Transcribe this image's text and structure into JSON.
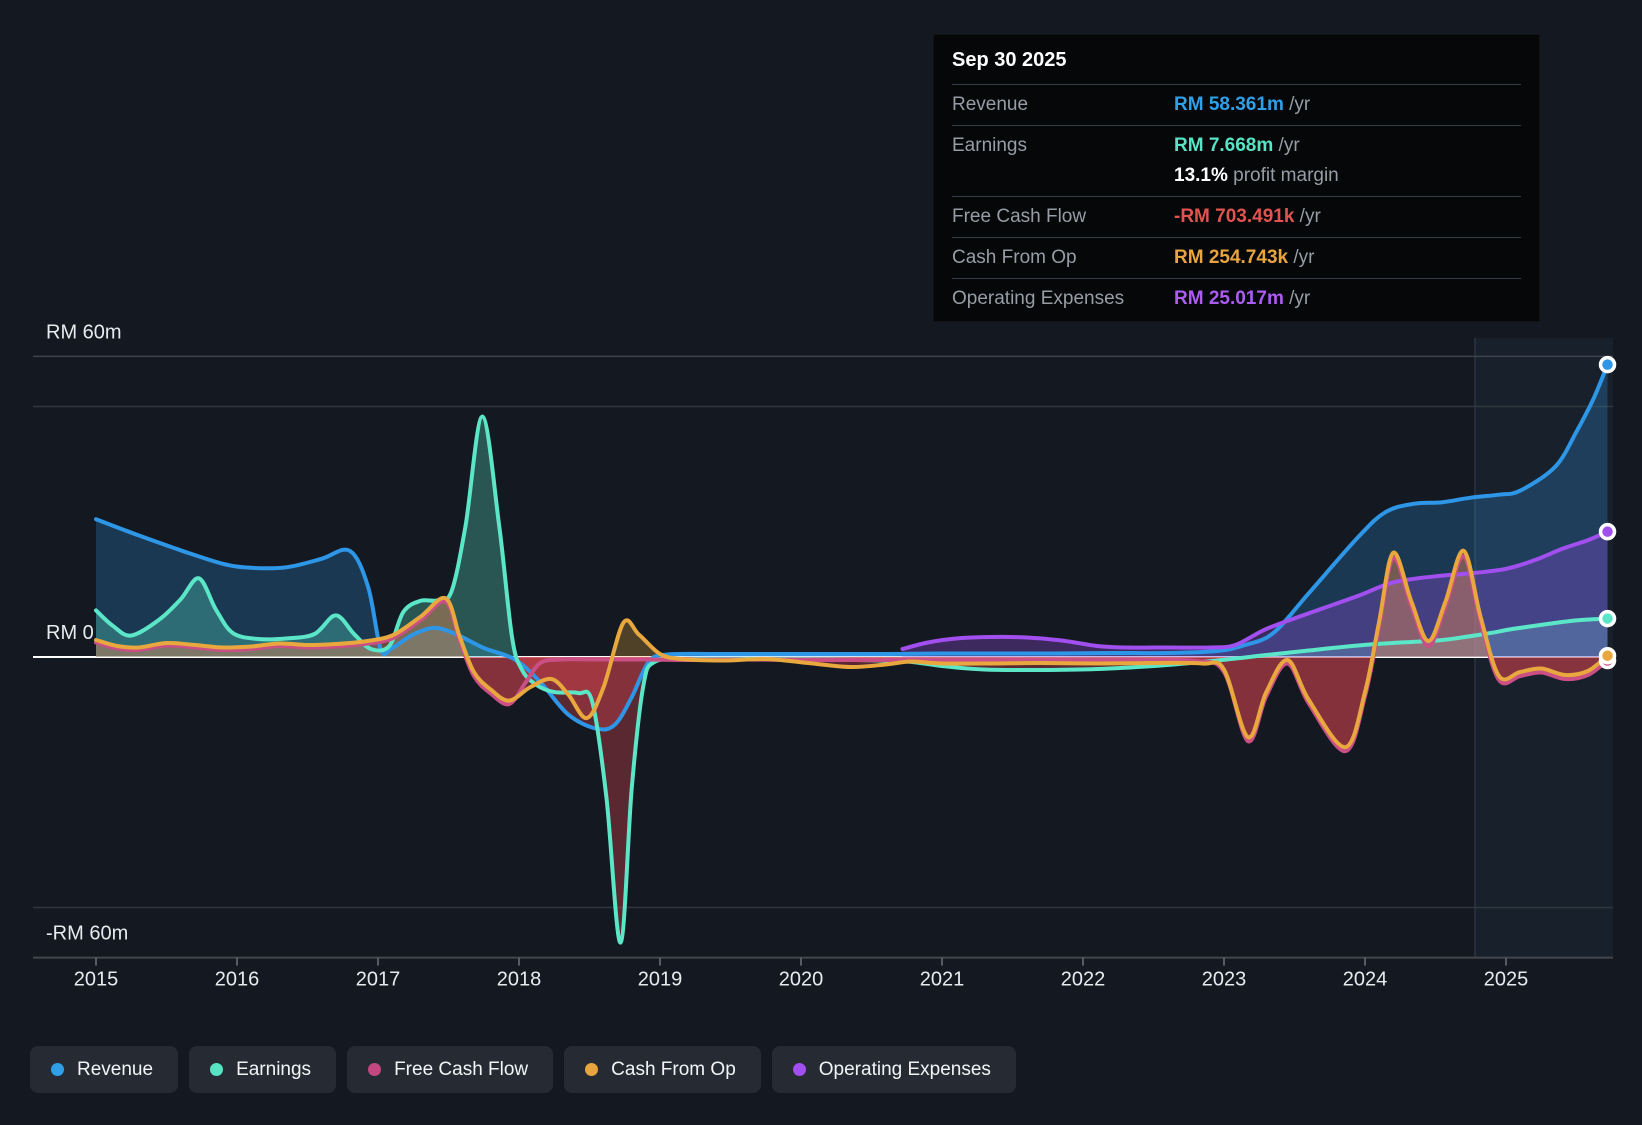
{
  "tooltip": {
    "title": "Sep 30 2025",
    "rows": [
      {
        "id": "revenue",
        "label": "Revenue",
        "value": "RM 58.361m",
        "suffix": " /yr",
        "color": "#2f9fe8"
      },
      {
        "id": "earnings",
        "label": "Earnings",
        "value": "RM 7.668m",
        "suffix": " /yr",
        "color": "#57e3c4",
        "subvalue": "13.1%",
        "subtext": " profit margin"
      },
      {
        "id": "fcf",
        "label": "Free Cash Flow",
        "value": "-RM 703.491k",
        "suffix": " /yr",
        "color": "#e0534e"
      },
      {
        "id": "cashop",
        "label": "Cash From Op",
        "value": "RM 254.743k",
        "suffix": " /yr",
        "color": "#e8a53e"
      },
      {
        "id": "opex",
        "label": "Operating Expenses",
        "value": "RM 25.017m",
        "suffix": " /yr",
        "color": "#ab5cf5"
      }
    ]
  },
  "legend": {
    "items": [
      {
        "id": "revenue",
        "label": "Revenue",
        "color": "#2f9fe8"
      },
      {
        "id": "earnings",
        "label": "Earnings",
        "color": "#57e3c4"
      },
      {
        "id": "fcf",
        "label": "Free Cash Flow",
        "color": "#c2487f"
      },
      {
        "id": "cashop",
        "label": "Cash From Op",
        "color": "#e8a53e"
      },
      {
        "id": "opex",
        "label": "Operating Expenses",
        "color": "#a14fee"
      }
    ]
  },
  "chart_data": {
    "type": "area",
    "unit": "RM millions per year",
    "y_axis": {
      "labels": [
        {
          "text": "RM 60m",
          "value": 60
        },
        {
          "text": "RM 0",
          "value": 0
        },
        {
          "text": "-RM 60m",
          "value": -60
        }
      ],
      "minor_gridlines": [
        50,
        -50
      ],
      "range": [
        -60,
        60
      ]
    },
    "x_axis": {
      "ticks": [
        2015,
        2016,
        2017,
        2018,
        2019,
        2020,
        2021,
        2022,
        2023,
        2024,
        2025
      ]
    },
    "highlight_band": {
      "from_year": 2024.78,
      "to_year": 2025.8
    },
    "series": [
      {
        "id": "revenue",
        "name": "Revenue",
        "color": "#2e96e6",
        "fill_opacity": 0.25,
        "points": [
          [
            2015.0,
            27.5
          ],
          [
            2015.3,
            24.3
          ],
          [
            2015.6,
            21.3
          ],
          [
            2015.9,
            18.6
          ],
          [
            2016.1,
            17.8
          ],
          [
            2016.35,
            17.9
          ],
          [
            2016.6,
            19.6
          ],
          [
            2016.8,
            21.2
          ],
          [
            2016.93,
            14.0
          ],
          [
            2017.02,
            1.5
          ],
          [
            2017.1,
            1.8
          ],
          [
            2017.25,
            4.5
          ],
          [
            2017.4,
            5.8
          ],
          [
            2017.55,
            4.6
          ],
          [
            2017.75,
            1.8
          ],
          [
            2017.97,
            -0.5
          ],
          [
            2018.15,
            -5.0
          ],
          [
            2018.35,
            -11.5
          ],
          [
            2018.55,
            -14.3
          ],
          [
            2018.68,
            -13.5
          ],
          [
            2018.8,
            -8.0
          ],
          [
            2018.92,
            -1.0
          ],
          [
            2019.05,
            0.5
          ],
          [
            2019.4,
            0.6
          ],
          [
            2019.8,
            0.6
          ],
          [
            2020.2,
            0.6
          ],
          [
            2020.6,
            0.6
          ],
          [
            2021.0,
            0.7
          ],
          [
            2021.4,
            0.7
          ],
          [
            2021.8,
            0.7
          ],
          [
            2022.2,
            0.8
          ],
          [
            2022.6,
            0.8
          ],
          [
            2022.95,
            1.2
          ],
          [
            2023.15,
            2.4
          ],
          [
            2023.35,
            4.8
          ],
          [
            2023.6,
            12.7
          ],
          [
            2023.96,
            24.2
          ],
          [
            2024.15,
            29.0
          ],
          [
            2024.35,
            30.6
          ],
          [
            2024.55,
            30.9
          ],
          [
            2024.75,
            31.8
          ],
          [
            2024.95,
            32.4
          ],
          [
            2025.1,
            33.2
          ],
          [
            2025.35,
            38.0
          ],
          [
            2025.5,
            45.0
          ],
          [
            2025.62,
            51.5
          ],
          [
            2025.72,
            58.361
          ]
        ]
      },
      {
        "id": "earnings",
        "name": "Earnings",
        "color": "#5ce6c8",
        "fill_opacity": 0.3,
        "points": [
          [
            2015.0,
            9.3
          ],
          [
            2015.12,
            6.2
          ],
          [
            2015.25,
            4.3
          ],
          [
            2015.45,
            7.5
          ],
          [
            2015.6,
            11.5
          ],
          [
            2015.73,
            15.7
          ],
          [
            2015.85,
            9.5
          ],
          [
            2015.97,
            4.8
          ],
          [
            2016.15,
            3.6
          ],
          [
            2016.35,
            3.7
          ],
          [
            2016.55,
            4.6
          ],
          [
            2016.7,
            8.3
          ],
          [
            2016.83,
            4.6
          ],
          [
            2016.95,
            1.6
          ],
          [
            2017.08,
            2.2
          ],
          [
            2017.18,
            9.0
          ],
          [
            2017.3,
            11.2
          ],
          [
            2017.42,
            11.3
          ],
          [
            2017.52,
            13.0
          ],
          [
            2017.62,
            26.0
          ],
          [
            2017.74,
            48.0
          ],
          [
            2017.86,
            26.0
          ],
          [
            2017.95,
            4.0
          ],
          [
            2018.02,
            -2.5
          ],
          [
            2018.12,
            -5.5
          ],
          [
            2018.25,
            -7.0
          ],
          [
            2018.42,
            -7.2
          ],
          [
            2018.52,
            -9.0
          ],
          [
            2018.62,
            -28.0
          ],
          [
            2018.72,
            -57.0
          ],
          [
            2018.8,
            -26.0
          ],
          [
            2018.88,
            -6.0
          ],
          [
            2018.96,
            -1.0
          ],
          [
            2019.2,
            -0.5
          ],
          [
            2019.6,
            -0.4
          ],
          [
            2020.0,
            -0.5
          ],
          [
            2020.4,
            -0.6
          ],
          [
            2020.75,
            -0.9
          ],
          [
            2021.0,
            -1.8
          ],
          [
            2021.3,
            -2.5
          ],
          [
            2021.7,
            -2.6
          ],
          [
            2022.1,
            -2.4
          ],
          [
            2022.5,
            -1.8
          ],
          [
            2022.8,
            -1.1
          ],
          [
            2023.05,
            -0.4
          ],
          [
            2023.3,
            0.4
          ],
          [
            2023.6,
            1.3
          ],
          [
            2023.95,
            2.3
          ],
          [
            2024.25,
            2.9
          ],
          [
            2024.55,
            3.4
          ],
          [
            2024.85,
            4.6
          ],
          [
            2025.05,
            5.6
          ],
          [
            2025.3,
            6.6
          ],
          [
            2025.5,
            7.3
          ],
          [
            2025.72,
            7.668
          ]
        ]
      },
      {
        "id": "opex",
        "name": "Operating Expenses",
        "color": "#a14fee",
        "fill_opacity": 0.3,
        "points": [
          [
            2020.72,
            1.6
          ],
          [
            2020.9,
            2.9
          ],
          [
            2021.1,
            3.7
          ],
          [
            2021.35,
            4.0
          ],
          [
            2021.6,
            3.9
          ],
          [
            2021.85,
            3.3
          ],
          [
            2022.1,
            2.2
          ],
          [
            2022.3,
            1.9
          ],
          [
            2022.6,
            1.9
          ],
          [
            2022.9,
            1.9
          ],
          [
            2023.08,
            2.4
          ],
          [
            2023.3,
            5.6
          ],
          [
            2023.6,
            8.7
          ],
          [
            2023.95,
            12.2
          ],
          [
            2024.2,
            14.9
          ],
          [
            2024.5,
            16.1
          ],
          [
            2024.75,
            16.7
          ],
          [
            2025.0,
            17.6
          ],
          [
            2025.2,
            19.3
          ],
          [
            2025.4,
            21.6
          ],
          [
            2025.58,
            23.3
          ],
          [
            2025.72,
            25.017
          ]
        ]
      },
      {
        "id": "fcf",
        "name": "Free Cash Flow",
        "color": "#c94f84",
        "fill_opacity": 0.25,
        "points": [
          [
            2015.0,
            2.9
          ],
          [
            2015.15,
            1.7
          ],
          [
            2015.3,
            1.4
          ],
          [
            2015.5,
            2.3
          ],
          [
            2015.7,
            1.9
          ],
          [
            2015.9,
            1.4
          ],
          [
            2016.1,
            1.6
          ],
          [
            2016.3,
            2.2
          ],
          [
            2016.5,
            1.9
          ],
          [
            2016.7,
            2.1
          ],
          [
            2016.9,
            2.6
          ],
          [
            2017.1,
            3.7
          ],
          [
            2017.3,
            7.3
          ],
          [
            2017.48,
            11.0
          ],
          [
            2017.58,
            3.2
          ],
          [
            2017.68,
            -3.8
          ],
          [
            2017.8,
            -7.3
          ],
          [
            2017.93,
            -9.4
          ],
          [
            2018.05,
            -5.0
          ],
          [
            2018.15,
            -1.2
          ],
          [
            2018.3,
            -0.5
          ],
          [
            2018.6,
            -0.5
          ],
          [
            2018.9,
            -0.5
          ],
          [
            2019.2,
            -0.6
          ],
          [
            2019.6,
            -0.5
          ],
          [
            2020.0,
            -0.6
          ],
          [
            2020.4,
            -0.6
          ],
          [
            2020.8,
            -0.6
          ],
          [
            2021.2,
            -0.6
          ],
          [
            2021.6,
            -0.6
          ],
          [
            2022.0,
            -0.6
          ],
          [
            2022.4,
            -0.6
          ],
          [
            2022.8,
            -0.8
          ],
          [
            2023.0,
            -3.0
          ],
          [
            2023.17,
            -16.8
          ],
          [
            2023.3,
            -7.8
          ],
          [
            2023.45,
            -1.3
          ],
          [
            2023.6,
            -9.2
          ],
          [
            2023.86,
            -18.8
          ],
          [
            2024.0,
            -7.8
          ],
          [
            2024.1,
            6.0
          ],
          [
            2024.2,
            19.7
          ],
          [
            2024.33,
            10.0
          ],
          [
            2024.45,
            2.2
          ],
          [
            2024.57,
            10.0
          ],
          [
            2024.7,
            20.1
          ],
          [
            2024.82,
            7.0
          ],
          [
            2024.95,
            -4.6
          ],
          [
            2025.1,
            -3.8
          ],
          [
            2025.25,
            -3.1
          ],
          [
            2025.42,
            -4.4
          ],
          [
            2025.58,
            -3.6
          ],
          [
            2025.72,
            -0.703
          ]
        ]
      },
      {
        "id": "cashop",
        "name": "Cash From Op",
        "color": "#e9a83e",
        "fill_opacity": 0.28,
        "points": [
          [
            2015.0,
            3.4
          ],
          [
            2015.15,
            2.2
          ],
          [
            2015.3,
            1.9
          ],
          [
            2015.5,
            2.8
          ],
          [
            2015.7,
            2.4
          ],
          [
            2015.9,
            1.9
          ],
          [
            2016.1,
            2.1
          ],
          [
            2016.3,
            2.7
          ],
          [
            2016.5,
            2.4
          ],
          [
            2016.7,
            2.6
          ],
          [
            2016.9,
            3.1
          ],
          [
            2017.1,
            4.3
          ],
          [
            2017.3,
            8.0
          ],
          [
            2017.48,
            11.7
          ],
          [
            2017.58,
            4.0
          ],
          [
            2017.68,
            -3.0
          ],
          [
            2017.8,
            -6.5
          ],
          [
            2017.93,
            -8.7
          ],
          [
            2018.08,
            -6.0
          ],
          [
            2018.23,
            -4.4
          ],
          [
            2018.35,
            -7.5
          ],
          [
            2018.48,
            -12.2
          ],
          [
            2018.6,
            -6.0
          ],
          [
            2018.74,
            6.8
          ],
          [
            2018.85,
            4.5
          ],
          [
            2019.0,
            0.6
          ],
          [
            2019.15,
            -0.4
          ],
          [
            2019.45,
            -0.7
          ],
          [
            2019.75,
            -0.4
          ],
          [
            2020.05,
            -1.2
          ],
          [
            2020.35,
            -2.0
          ],
          [
            2020.6,
            -1.5
          ],
          [
            2020.78,
            -0.9
          ],
          [
            2021.0,
            -1.3
          ],
          [
            2021.35,
            -1.3
          ],
          [
            2021.7,
            -1.2
          ],
          [
            2022.1,
            -1.3
          ],
          [
            2022.5,
            -1.2
          ],
          [
            2022.85,
            -1.3
          ],
          [
            2023.0,
            -2.5
          ],
          [
            2023.17,
            -16.0
          ],
          [
            2023.3,
            -7.0
          ],
          [
            2023.45,
            -0.6
          ],
          [
            2023.6,
            -8.5
          ],
          [
            2023.86,
            -18.0
          ],
          [
            2024.0,
            -7.0
          ],
          [
            2024.1,
            7.0
          ],
          [
            2024.2,
            20.8
          ],
          [
            2024.33,
            11.0
          ],
          [
            2024.45,
            3.2
          ],
          [
            2024.57,
            11.0
          ],
          [
            2024.7,
            21.2
          ],
          [
            2024.82,
            8.0
          ],
          [
            2024.95,
            -3.8
          ],
          [
            2025.1,
            -3.0
          ],
          [
            2025.25,
            -2.3
          ],
          [
            2025.42,
            -3.6
          ],
          [
            2025.58,
            -2.8
          ],
          [
            2025.72,
            0.255
          ]
        ]
      }
    ],
    "colors": {
      "negative_fill": "#cd414b",
      "zero_line": "#ffffff",
      "gridline_major": "#3d434b",
      "gridline_minor": "#30363d",
      "axis_line": "#42474e",
      "tick": "#565c64",
      "axis_text": "#e8ebee"
    }
  }
}
